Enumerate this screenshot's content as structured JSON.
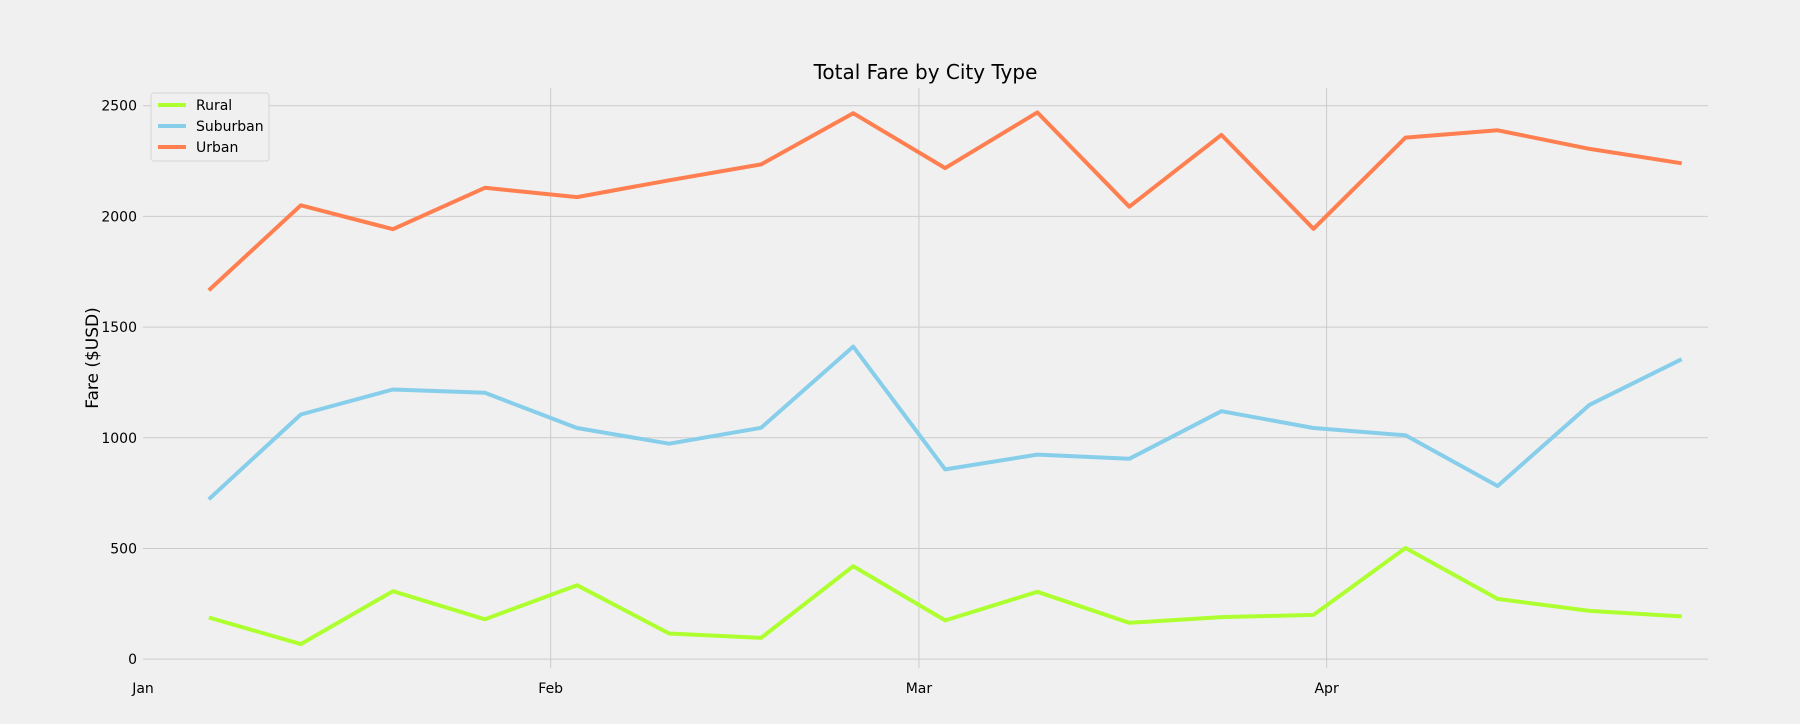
{
  "chart_data": {
    "type": "line",
    "title": "Total Fare by City Type",
    "xlabel": "",
    "ylabel": "Fare ($USD)",
    "ylim": [
      -40,
      2580
    ],
    "yticks": [
      0,
      500,
      1000,
      1500,
      2000,
      2500
    ],
    "xlim": [
      0,
      119
    ],
    "xticks": [
      {
        "label": "Jan",
        "day": 0
      },
      {
        "label": "Feb",
        "day": 31
      },
      {
        "label": "Mar",
        "day": 59
      },
      {
        "label": "Apr",
        "day": 90
      }
    ],
    "x_days": [
      5,
      12,
      19,
      26,
      33,
      40,
      47,
      54,
      61,
      68,
      75,
      82,
      89,
      96,
      103,
      110,
      117
    ],
    "legend_position": "upper-left",
    "grid": true,
    "series": [
      {
        "name": "Rural",
        "color": "#adff2f",
        "values": [
          188,
          68,
          307,
          180,
          334,
          116,
          96,
          420,
          175,
          304,
          164,
          190,
          200,
          502,
          272,
          218,
          193
        ]
      },
      {
        "name": "Suburban",
        "color": "#87ceeb",
        "values": [
          722,
          1105,
          1218,
          1203,
          1044,
          973,
          1045,
          1412,
          857,
          924,
          905,
          1120,
          1044,
          1011,
          782,
          1149,
          1355
        ]
      },
      {
        "name": "Urban",
        "color": "#ff7f50",
        "values": [
          1666,
          2050,
          1942,
          2129,
          2087,
          2163,
          2235,
          2466,
          2218,
          2470,
          2044,
          2368,
          1944,
          2356,
          2389,
          2305,
          2240
        ]
      }
    ]
  }
}
